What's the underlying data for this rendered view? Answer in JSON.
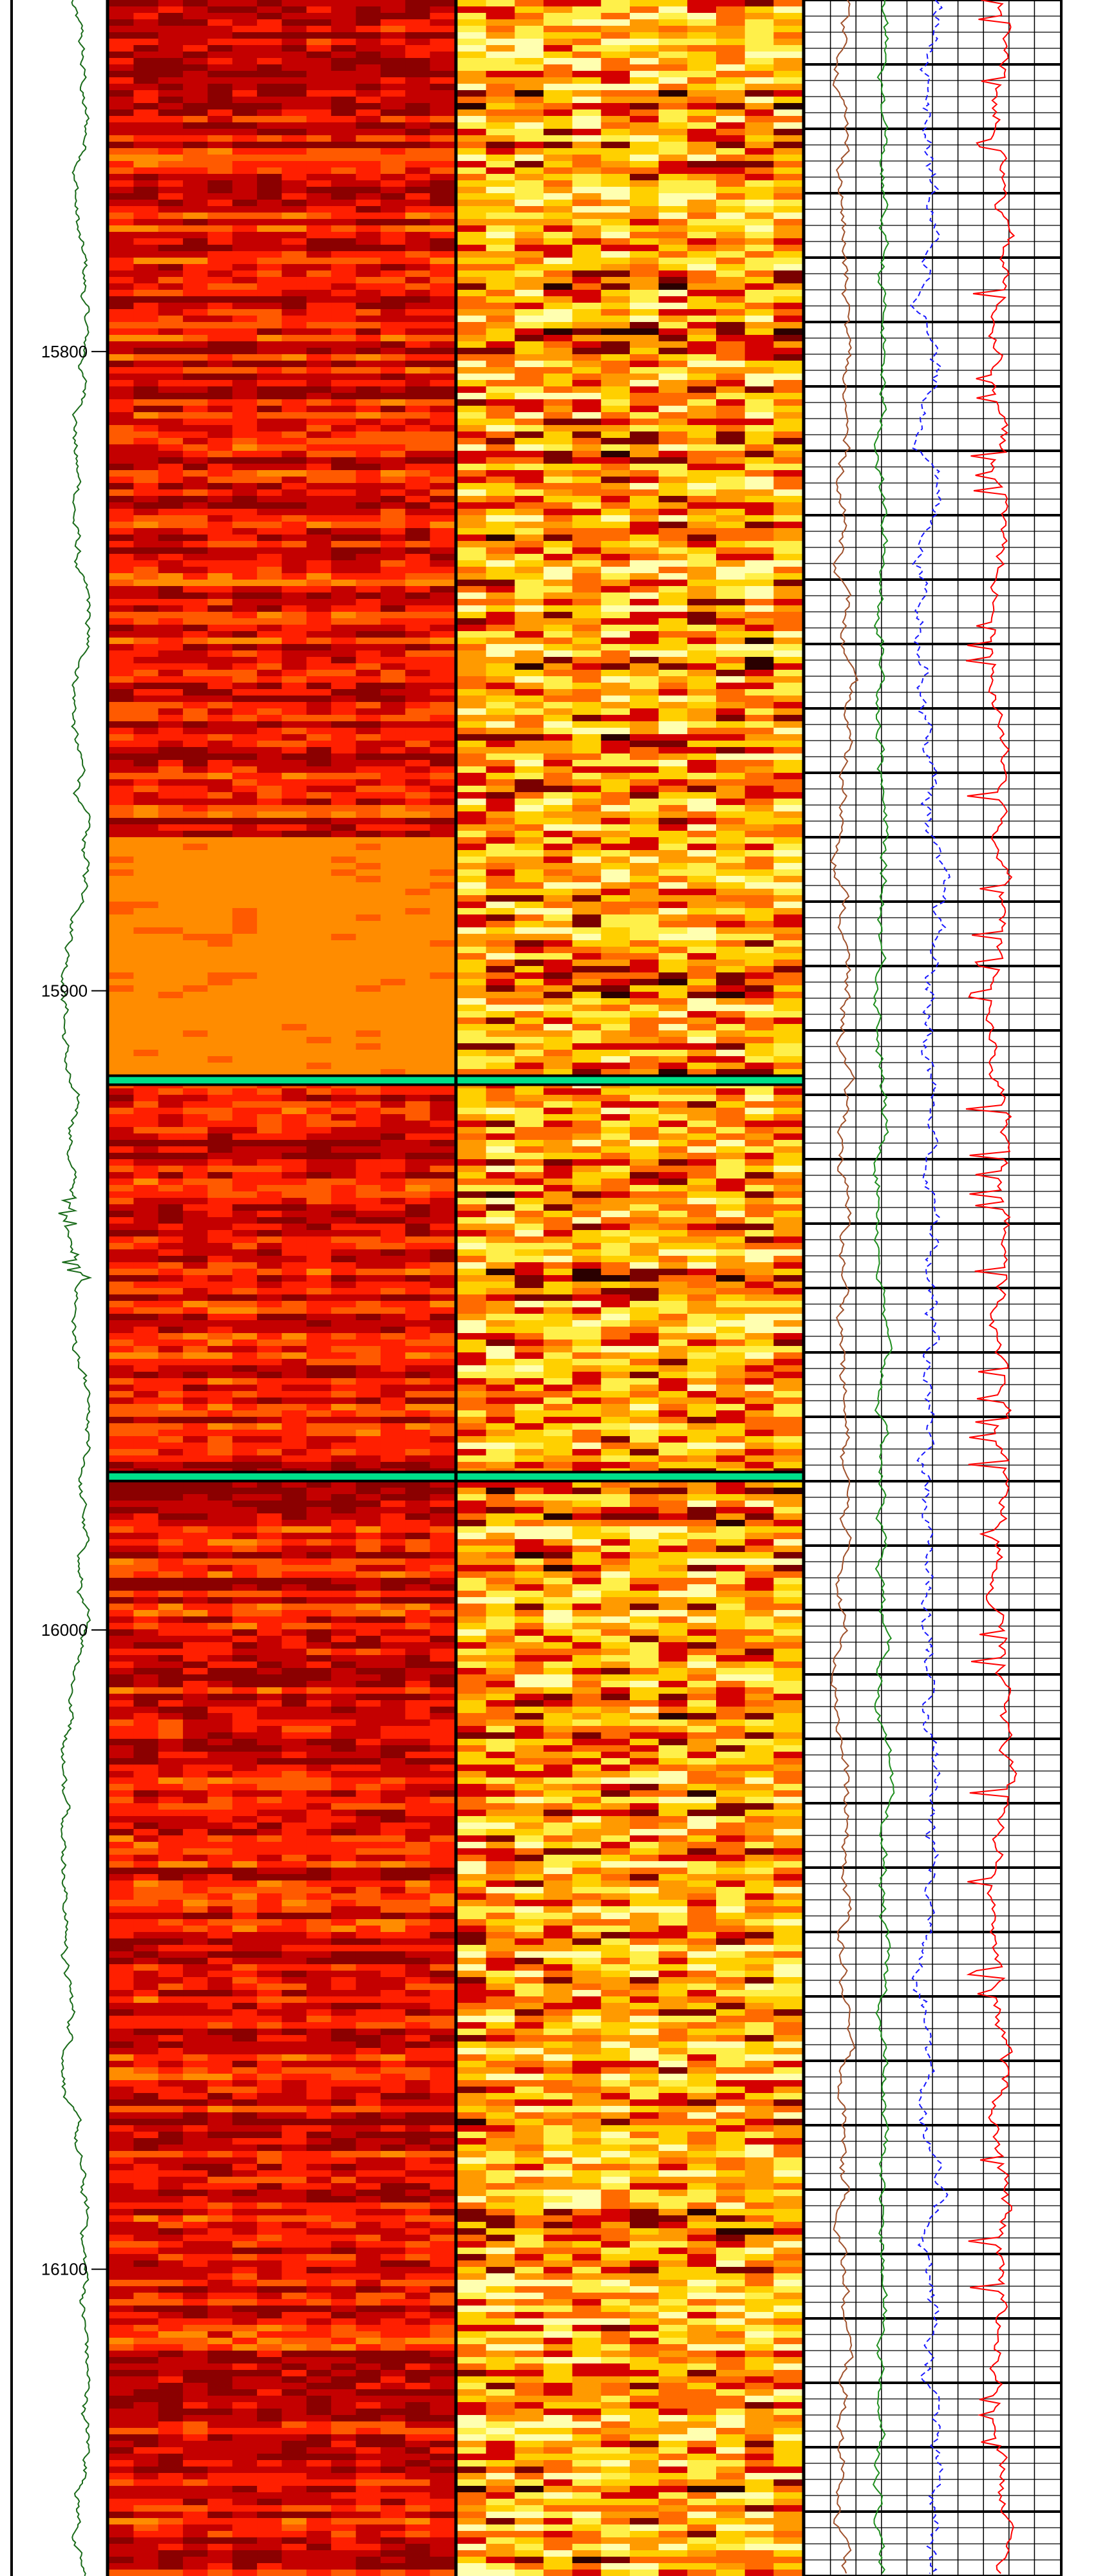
{
  "chart_data": {
    "type": "heatmap",
    "title": "",
    "depth_axis": {
      "range": [
        15745,
        16148
      ],
      "ticks": [
        15800,
        15900,
        16000,
        16100
      ],
      "tick_labels": [
        "15800",
        "15900",
        "16000",
        "16100"
      ],
      "direction": "increasing-downward"
    },
    "tracks": [
      {
        "name": "",
        "kind": "curve",
        "color": "#1a6b1a",
        "scale": [
          0,
          1
        ]
      },
      {
        "name": "",
        "kind": "image",
        "palette": [
          "#8b0000",
          "#c40000",
          "#ff1f00",
          "#ff5a00",
          "#ff8c00",
          "#ffb000",
          "#ffd700",
          "#fff176"
        ]
      },
      {
        "name": "",
        "kind": "image",
        "palette": [
          "#2a0000",
          "#7a0000",
          "#d40000",
          "#ff6a00",
          "#ff9a00",
          "#ffd000",
          "#fff04a",
          "#ffffb0"
        ]
      },
      {
        "name": "",
        "kind": "curves",
        "grid": true,
        "series": [
          {
            "name": "",
            "color": "#a0522d"
          },
          {
            "name": "",
            "color": "#1f8f1f"
          },
          {
            "name": "",
            "color": "#1a1aff"
          },
          {
            "name": "",
            "color": "#ff0000"
          }
        ]
      }
    ],
    "zones": [
      {
        "depth_top": 15875,
        "depth_bottom": 15914,
        "description": "uniform orange zone in left image track"
      }
    ],
    "markers": [
      {
        "depth": 15914,
        "color": "#00e08a"
      },
      {
        "depth": 15976,
        "color": "#00e08a"
      }
    ],
    "grid_on": true,
    "legend": "none"
  }
}
